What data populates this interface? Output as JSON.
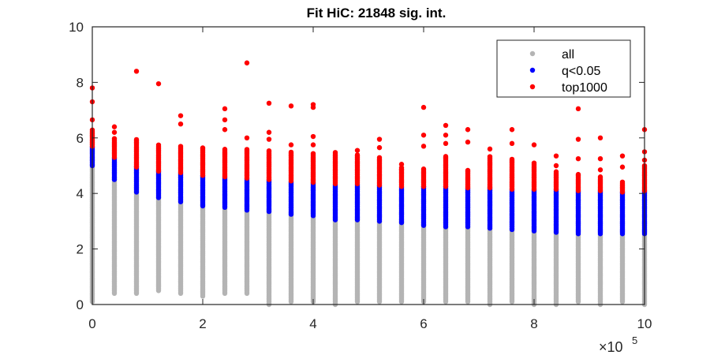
{
  "chart_data": {
    "type": "scatter",
    "title": "Fit HiC: 21848 sig. int.",
    "xlabel": "",
    "ylabel": "",
    "xlim": [
      0,
      10
    ],
    "ylim": [
      0,
      10
    ],
    "x_multiplier": "×10",
    "x_multiplier_exp": "5",
    "xticks": [
      "0",
      "2",
      "4",
      "6",
      "8",
      "10"
    ],
    "yticks": [
      "0",
      "2",
      "4",
      "6",
      "8",
      "10"
    ],
    "grid": false,
    "legend_position": "top-right",
    "colors": {
      "all": "#b4b4b4",
      "q": "#0000ff",
      "top": "#ff0000"
    },
    "x": [
      0,
      0.4,
      0.8,
      1.2,
      1.6,
      2.0,
      2.4,
      2.8,
      3.2,
      3.6,
      4.0,
      4.4,
      4.8,
      5.2,
      5.6,
      6.0,
      6.4,
      6.8,
      7.2,
      7.6,
      8.0,
      8.4,
      8.8,
      9.2,
      9.6,
      10.0
    ],
    "series": [
      {
        "name": "all",
        "color": "#b4b4b4",
        "low": [
          0.1,
          0.4,
          0.4,
          0.5,
          0.4,
          0.3,
          0.4,
          0.4,
          0.0,
          0.1,
          0.1,
          0.0,
          0.1,
          0.1,
          0.1,
          0.1,
          0.1,
          0.1,
          0.0,
          0.1,
          0.0,
          0.0,
          0.1,
          0.0,
          0.1,
          0.0
        ],
        "high": [
          5.0,
          4.5,
          4.05,
          3.85,
          3.7,
          3.55,
          3.5,
          3.4,
          3.35,
          3.25,
          3.2,
          3.05,
          3.05,
          3.0,
          2.95,
          2.85,
          2.8,
          2.8,
          2.75,
          2.7,
          2.65,
          2.6,
          2.55,
          2.55,
          2.55,
          2.55
        ]
      },
      {
        "name": "q<0.05",
        "color": "#0000ff",
        "low": [
          5.0,
          4.5,
          4.05,
          3.85,
          3.7,
          3.55,
          3.5,
          3.4,
          3.35,
          3.25,
          3.2,
          3.05,
          3.05,
          3.0,
          2.95,
          2.85,
          2.8,
          2.8,
          2.75,
          2.7,
          2.65,
          2.6,
          2.55,
          2.55,
          2.55,
          2.55
        ],
        "high": [
          5.7,
          5.3,
          4.95,
          4.8,
          4.75,
          4.65,
          4.6,
          4.55,
          4.5,
          4.45,
          4.4,
          4.35,
          4.35,
          4.3,
          4.25,
          4.25,
          4.25,
          4.2,
          4.2,
          4.15,
          4.15,
          4.15,
          4.1,
          4.1,
          4.05,
          4.1
        ]
      },
      {
        "name": "top1000",
        "color": "#ff0000",
        "low": [
          5.7,
          5.3,
          4.95,
          4.8,
          4.75,
          4.65,
          4.6,
          4.55,
          4.5,
          4.45,
          4.4,
          4.35,
          4.35,
          4.3,
          4.25,
          4.25,
          4.25,
          4.2,
          4.2,
          4.15,
          4.15,
          4.15,
          4.1,
          4.1,
          4.05,
          4.1
        ],
        "high": [
          6.3,
          6.0,
          5.95,
          5.75,
          5.7,
          5.65,
          5.6,
          5.6,
          5.55,
          5.5,
          5.45,
          5.5,
          5.4,
          5.3,
          4.95,
          4.9,
          5.35,
          4.85,
          5.35,
          5.25,
          5.1,
          4.8,
          4.7,
          4.6,
          4.45,
          5.0
        ],
        "outliers": [
          [
            0,
            7.8
          ],
          [
            0,
            7.3
          ],
          [
            0,
            6.65
          ],
          [
            0.4,
            6.4
          ],
          [
            0.4,
            6.2
          ],
          [
            0.8,
            8.4
          ],
          [
            1.2,
            7.95
          ],
          [
            1.6,
            6.8
          ],
          [
            1.6,
            6.5
          ],
          [
            2.4,
            7.05
          ],
          [
            2.4,
            6.65
          ],
          [
            2.4,
            6.3
          ],
          [
            2.8,
            8.7
          ],
          [
            2.8,
            6.0
          ],
          [
            3.2,
            7.25
          ],
          [
            3.2,
            6.2
          ],
          [
            3.2,
            5.95
          ],
          [
            3.6,
            7.15
          ],
          [
            3.6,
            5.75
          ],
          [
            4.0,
            7.2
          ],
          [
            4.0,
            7.1
          ],
          [
            4.0,
            6.05
          ],
          [
            4.0,
            5.75
          ],
          [
            4.8,
            5.55
          ],
          [
            5.2,
            5.95
          ],
          [
            5.2,
            5.65
          ],
          [
            5.6,
            5.05
          ],
          [
            5.6,
            4.85
          ],
          [
            6.0,
            7.1
          ],
          [
            6.0,
            6.1
          ],
          [
            6.0,
            5.7
          ],
          [
            6.4,
            6.45
          ],
          [
            6.4,
            6.1
          ],
          [
            6.4,
            5.8
          ],
          [
            6.8,
            6.3
          ],
          [
            6.8,
            5.85
          ],
          [
            7.2,
            5.6
          ],
          [
            7.6,
            6.3
          ],
          [
            7.6,
            5.8
          ],
          [
            8.0,
            5.75
          ],
          [
            8.4,
            5.35
          ],
          [
            8.4,
            5.0
          ],
          [
            8.8,
            7.05
          ],
          [
            8.8,
            5.95
          ],
          [
            8.8,
            5.25
          ],
          [
            9.2,
            6.0
          ],
          [
            9.2,
            5.25
          ],
          [
            9.2,
            4.85
          ],
          [
            9.6,
            5.35
          ],
          [
            9.6,
            4.95
          ],
          [
            10.0,
            6.3
          ],
          [
            10.0,
            5.5
          ],
          [
            10.0,
            5.2
          ]
        ]
      }
    ]
  }
}
